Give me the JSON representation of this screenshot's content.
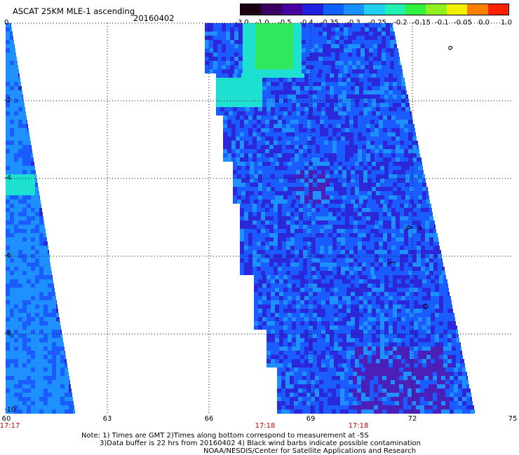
{
  "header": {
    "title": "ASCAT 25KM MLE-1 ascending",
    "date": "20160402"
  },
  "colorbar": {
    "ticks": [
      "-3.0",
      "-1.0",
      "-0.5",
      "-0.4",
      "-0.35",
      "-0.3",
      "-0.25",
      "-0.2",
      "-0.15",
      "-0.1",
      "-0.05",
      "0.0",
      "1.0"
    ],
    "colors": [
      "#1a0010",
      "#3a0060",
      "#4a00a0",
      "#2020e0",
      "#1060ff",
      "#1890ff",
      "#20d0f0",
      "#20f0b0",
      "#30f040",
      "#90f020",
      "#f0f000",
      "#ff8000",
      "#ff2000"
    ]
  },
  "axes": {
    "y_labels": [
      "0",
      "-2",
      "-4",
      "-6",
      "-8",
      "-10"
    ],
    "x_labels": [
      "60",
      "63",
      "66",
      "69",
      "72",
      "75"
    ],
    "times": [
      "17:17",
      "17:18",
      "17:18"
    ]
  },
  "notes": {
    "line1": "Note: 1) Times are GMT 2)Times along bottom correspond to measurement at -5S",
    "line2": "3)Data buffer is 22 hrs from 20160402 4) Black wind barbs indicate possible contamination",
    "line3": "NOAA/NESDIS/Center for Satellite Applications and Research"
  },
  "map_colors": {
    "base": "#1a5cff",
    "dark": "#2a28d8",
    "deep": "#4a20b8",
    "light": "#1e90ff",
    "cyan": "#1ee0d0",
    "green": "#30e860",
    "gridline": "#000000"
  }
}
